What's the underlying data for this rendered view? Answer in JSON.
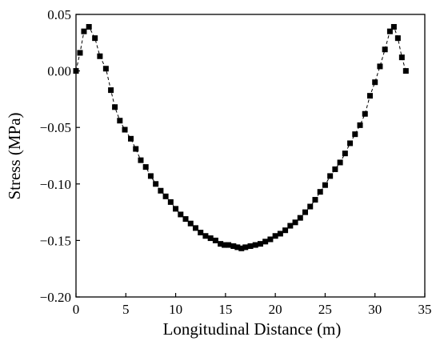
{
  "chart_data": {
    "type": "line",
    "title": "",
    "xlabel": "Longitudinal Distance (m)",
    "ylabel": "Stress (MPa)",
    "xlim": [
      0,
      35
    ],
    "ylim": [
      -0.2,
      0.05
    ],
    "x_ticks": [
      0,
      5,
      10,
      15,
      20,
      25,
      30,
      35
    ],
    "y_ticks": [
      0.05,
      0.0,
      -0.05,
      -0.1,
      -0.15,
      -0.2
    ],
    "x_tick_labels": [
      "0",
      "5",
      "10",
      "15",
      "20",
      "25",
      "30",
      "35"
    ],
    "y_tick_labels": [
      "0.05",
      "0.00",
      "−0.05",
      "−0.10",
      "−0.15",
      "−0.20"
    ],
    "grid": false,
    "legend": "none",
    "marker": "square",
    "line_style": "dashed",
    "color": "#000000",
    "series": [
      {
        "x": [
          0,
          0.4,
          0.8,
          1.3,
          1.9,
          2.4,
          3.0,
          3.5,
          3.9,
          4.4,
          4.9,
          5.5,
          6.0,
          6.5,
          7.0,
          7.5,
          8.0,
          8.5,
          9.0,
          9.5,
          10.0,
          10.5,
          11.0,
          11.5,
          12.0,
          12.5,
          13.0,
          13.5,
          14.0,
          14.5,
          14.9,
          15.3,
          15.8,
          16.2,
          16.6,
          17.0,
          17.5,
          18.0,
          18.5,
          19.0,
          19.5,
          20.0,
          20.5,
          21.0,
          21.5,
          22.0,
          22.5,
          23.0,
          23.5,
          24.0,
          24.5,
          25.0,
          25.5,
          26.0,
          26.5,
          27.0,
          27.5,
          28.0,
          28.5,
          29.0,
          29.5,
          30.0,
          30.5,
          31.0,
          31.5,
          31.9,
          32.3,
          32.7,
          33.1
        ],
        "y": [
          0.0,
          0.016,
          0.035,
          0.039,
          0.029,
          0.013,
          0.002,
          -0.017,
          -0.032,
          -0.044,
          -0.052,
          -0.06,
          -0.069,
          -0.079,
          -0.085,
          -0.093,
          -0.1,
          -0.106,
          -0.111,
          -0.116,
          -0.122,
          -0.127,
          -0.131,
          -0.135,
          -0.139,
          -0.143,
          -0.146,
          -0.148,
          -0.15,
          -0.153,
          -0.154,
          -0.154,
          -0.155,
          -0.156,
          -0.157,
          -0.156,
          -0.155,
          -0.154,
          -0.153,
          -0.151,
          -0.149,
          -0.146,
          -0.144,
          -0.141,
          -0.137,
          -0.134,
          -0.13,
          -0.125,
          -0.12,
          -0.114,
          -0.107,
          -0.101,
          -0.093,
          -0.087,
          -0.081,
          -0.073,
          -0.064,
          -0.056,
          -0.048,
          -0.038,
          -0.022,
          -0.01,
          0.004,
          0.019,
          0.035,
          0.039,
          0.029,
          0.012,
          0.0
        ]
      }
    ]
  }
}
